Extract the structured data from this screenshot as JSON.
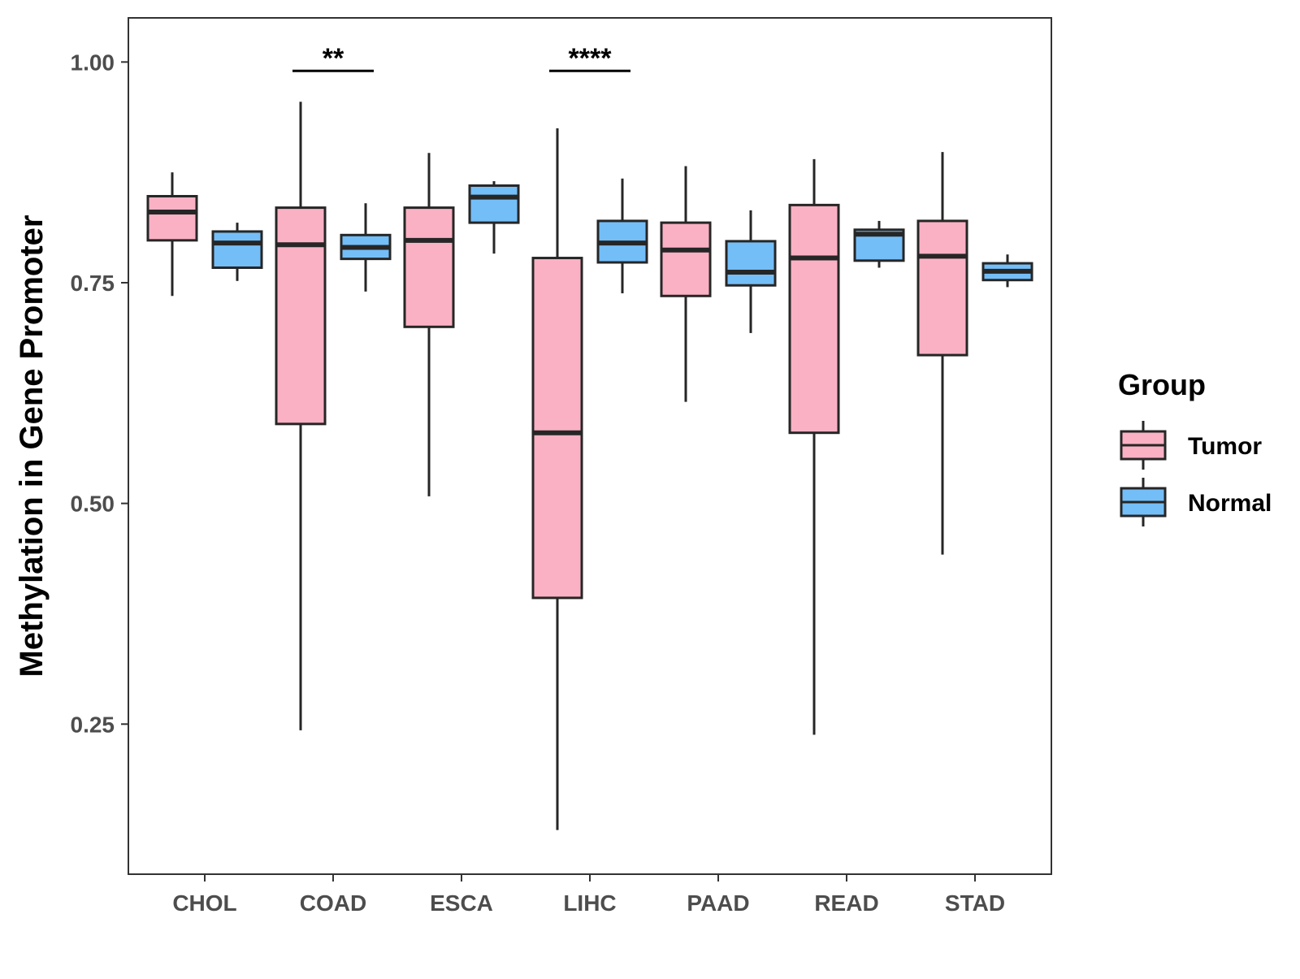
{
  "chart_data": {
    "type": "boxplot",
    "title": "",
    "xlabel": "",
    "ylabel": "Methylation in Gene Promoter",
    "ylim": [
      0.08,
      1.05
    ],
    "y_ticks": [
      0.25,
      0.5,
      0.75,
      1.0
    ],
    "y_tick_labels": [
      "0.25",
      "0.50",
      "0.75",
      "1.00"
    ],
    "grid": false,
    "legend": {
      "title": "Group",
      "position": "right",
      "entries": [
        {
          "name": "Tumor",
          "color": "#FBB1C4"
        },
        {
          "name": "Normal",
          "color": "#74BEF8"
        }
      ]
    },
    "categories": [
      "CHOL",
      "COAD",
      "ESCA",
      "LIHC",
      "PAAD",
      "READ",
      "STAD"
    ],
    "series": [
      {
        "name": "Tumor",
        "color": "#FBB1C4",
        "boxes": [
          {
            "min": 0.735,
            "q1": 0.798,
            "median": 0.83,
            "q3": 0.848,
            "max": 0.875
          },
          {
            "min": 0.243,
            "q1": 0.59,
            "median": 0.793,
            "q3": 0.835,
            "max": 0.955
          },
          {
            "min": 0.508,
            "q1": 0.7,
            "median": 0.798,
            "q3": 0.835,
            "max": 0.897
          },
          {
            "min": 0.13,
            "q1": 0.393,
            "median": 0.58,
            "q3": 0.778,
            "max": 0.925
          },
          {
            "min": 0.615,
            "q1": 0.735,
            "median": 0.787,
            "q3": 0.818,
            "max": 0.882
          },
          {
            "min": 0.238,
            "q1": 0.58,
            "median": 0.778,
            "q3": 0.838,
            "max": 0.89
          },
          {
            "min": 0.442,
            "q1": 0.668,
            "median": 0.78,
            "q3": 0.82,
            "max": 0.898
          }
        ]
      },
      {
        "name": "Normal",
        "color": "#74BEF8",
        "boxes": [
          {
            "min": 0.752,
            "q1": 0.767,
            "median": 0.795,
            "q3": 0.808,
            "max": 0.818
          },
          {
            "min": 0.74,
            "q1": 0.777,
            "median": 0.79,
            "q3": 0.804,
            "max": 0.84
          },
          {
            "min": 0.783,
            "q1": 0.818,
            "median": 0.847,
            "q3": 0.86,
            "max": 0.865
          },
          {
            "min": 0.738,
            "q1": 0.773,
            "median": 0.795,
            "q3": 0.82,
            "max": 0.868
          },
          {
            "min": 0.693,
            "q1": 0.747,
            "median": 0.762,
            "q3": 0.797,
            "max": 0.832
          },
          {
            "min": 0.767,
            "q1": 0.775,
            "median": 0.805,
            "q3": 0.81,
            "max": 0.82
          },
          {
            "min": 0.745,
            "q1": 0.753,
            "median": 0.763,
            "q3": 0.772,
            "max": 0.782
          }
        ]
      }
    ],
    "significance": [
      {
        "category": "COAD",
        "label": "**",
        "y": 0.99
      },
      {
        "category": "LIHC",
        "label": "****",
        "y": 0.99
      }
    ]
  }
}
